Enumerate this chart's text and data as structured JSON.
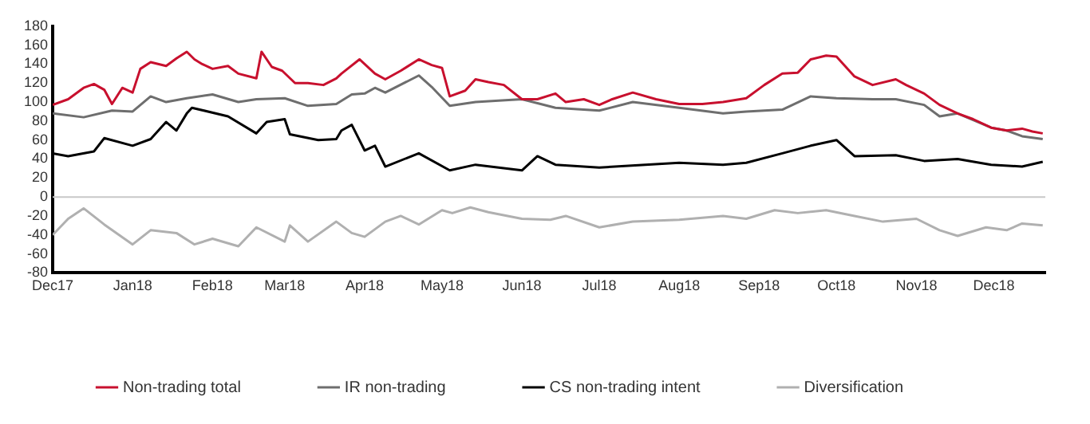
{
  "chart_data": {
    "type": "line",
    "xlim": [
      "2017-12-01",
      "2018-12-21"
    ],
    "xticks": [
      {
        "value": "2017-12-01",
        "label": "Dec17"
      },
      {
        "value": "2018-01-01",
        "label": "Jan18"
      },
      {
        "value": "2018-02-01",
        "label": "Feb18"
      },
      {
        "value": "2018-03-01",
        "label": "Mar18"
      },
      {
        "value": "2018-04-01",
        "label": "Apr18"
      },
      {
        "value": "2018-05-01",
        "label": "May18"
      },
      {
        "value": "2018-06-01",
        "label": "Jun18"
      },
      {
        "value": "2018-07-01",
        "label": "Jul18"
      },
      {
        "value": "2018-08-01",
        "label": "Aug18"
      },
      {
        "value": "2018-09-01",
        "label": "Sep18"
      },
      {
        "value": "2018-10-01",
        "label": "Oct18"
      },
      {
        "value": "2018-11-01",
        "label": "Nov18"
      },
      {
        "value": "2018-12-01",
        "label": "Dec18"
      }
    ],
    "ylim": [
      -80,
      180
    ],
    "yticks": [
      -80,
      -60,
      -40,
      -20,
      0,
      20,
      40,
      60,
      80,
      100,
      120,
      140,
      160,
      180
    ],
    "grid": false,
    "legend": "bottom",
    "marker": "none",
    "line_style": "solid",
    "ref_lines": [
      {
        "axis": "y",
        "value": 0,
        "color": "#c8c8c8"
      }
    ],
    "series": [
      {
        "name": "Non-trading total",
        "color": "#c8102e",
        "x": [
          "2017-12-01",
          "2017-12-07",
          "2017-12-13",
          "2017-12-17",
          "2017-12-21",
          "2017-12-24",
          "2017-12-28",
          "2018-01-01",
          "2018-01-04",
          "2018-01-08",
          "2018-01-14",
          "2018-01-18",
          "2018-01-22",
          "2018-01-25",
          "2018-01-28",
          "2018-02-01",
          "2018-02-07",
          "2018-02-11",
          "2018-02-18",
          "2018-02-20",
          "2018-02-24",
          "2018-02-28",
          "2018-03-05",
          "2018-03-10",
          "2018-03-16",
          "2018-03-21",
          "2018-03-23",
          "2018-03-30",
          "2018-04-05",
          "2018-04-09",
          "2018-04-15",
          "2018-04-22",
          "2018-04-27",
          "2018-05-01",
          "2018-05-04",
          "2018-05-10",
          "2018-05-14",
          "2018-05-19",
          "2018-05-25",
          "2018-06-01",
          "2018-06-07",
          "2018-06-14",
          "2018-06-18",
          "2018-06-25",
          "2018-07-01",
          "2018-07-06",
          "2018-07-14",
          "2018-07-23",
          "2018-08-01",
          "2018-08-10",
          "2018-08-18",
          "2018-08-27",
          "2018-09-03",
          "2018-09-10",
          "2018-09-16",
          "2018-09-21",
          "2018-09-27",
          "2018-10-01",
          "2018-10-08",
          "2018-10-15",
          "2018-10-24",
          "2018-10-28",
          "2018-11-04",
          "2018-11-10",
          "2018-11-17",
          "2018-11-23",
          "2018-11-30",
          "2018-12-06",
          "2018-12-12",
          "2018-12-16",
          "2018-12-20"
        ],
        "values": [
          97,
          103,
          115,
          119,
          113,
          98,
          115,
          110,
          135,
          142,
          138,
          146,
          153,
          145,
          140,
          135,
          138,
          130,
          125,
          153,
          137,
          133,
          120,
          120,
          118,
          125,
          130,
          145,
          130,
          124,
          133,
          145,
          139,
          136,
          106,
          112,
          124,
          121,
          118,
          103,
          103,
          109,
          100,
          103,
          97,
          103,
          110,
          103,
          98,
          98,
          100,
          104,
          118,
          130,
          131,
          145,
          149,
          148,
          127,
          118,
          124,
          118,
          109,
          97,
          88,
          82,
          73,
          70,
          72,
          69,
          67
        ]
      },
      {
        "name": "IR non-trading",
        "color": "#6e6e6e",
        "x": [
          "2017-12-01",
          "2017-12-13",
          "2017-12-24",
          "2018-01-01",
          "2018-01-08",
          "2018-01-14",
          "2018-01-22",
          "2018-02-01",
          "2018-02-11",
          "2018-02-18",
          "2018-03-01",
          "2018-03-10",
          "2018-03-21",
          "2018-03-27",
          "2018-04-01",
          "2018-04-05",
          "2018-04-09",
          "2018-04-22",
          "2018-04-27",
          "2018-05-04",
          "2018-05-14",
          "2018-06-01",
          "2018-06-14",
          "2018-07-01",
          "2018-07-14",
          "2018-08-01",
          "2018-08-18",
          "2018-08-27",
          "2018-09-10",
          "2018-09-21",
          "2018-10-01",
          "2018-10-15",
          "2018-10-24",
          "2018-11-04",
          "2018-11-10",
          "2018-11-17",
          "2018-11-30",
          "2018-12-06",
          "2018-12-12",
          "2018-12-20"
        ],
        "values": [
          88,
          84,
          91,
          90,
          106,
          100,
          104,
          108,
          100,
          103,
          104,
          96,
          98,
          108,
          109,
          115,
          110,
          128,
          116,
          96,
          100,
          103,
          94,
          91,
          100,
          94,
          88,
          90,
          92,
          106,
          104,
          103,
          103,
          97,
          85,
          88,
          73,
          70,
          64,
          61
        ]
      },
      {
        "name": "CS non-trading intent",
        "color": "#000000",
        "x": [
          "2017-12-01",
          "2017-12-07",
          "2017-12-17",
          "2017-12-21",
          "2018-01-01",
          "2018-01-08",
          "2018-01-14",
          "2018-01-18",
          "2018-01-22",
          "2018-01-24",
          "2018-02-07",
          "2018-02-18",
          "2018-02-22",
          "2018-03-01",
          "2018-03-03",
          "2018-03-14",
          "2018-03-21",
          "2018-03-23",
          "2018-03-27",
          "2018-04-01",
          "2018-04-05",
          "2018-04-09",
          "2018-04-22",
          "2018-05-04",
          "2018-05-14",
          "2018-06-01",
          "2018-06-07",
          "2018-06-14",
          "2018-07-01",
          "2018-08-01",
          "2018-08-18",
          "2018-08-27",
          "2018-09-10",
          "2018-09-21",
          "2018-10-01",
          "2018-10-08",
          "2018-10-24",
          "2018-11-04",
          "2018-11-17",
          "2018-11-30",
          "2018-12-12",
          "2018-12-20"
        ],
        "values": [
          46,
          43,
          48,
          62,
          54,
          61,
          79,
          70,
          88,
          94,
          85,
          67,
          79,
          82,
          66,
          60,
          61,
          70,
          76,
          49,
          54,
          32,
          46,
          28,
          34,
          28,
          43,
          34,
          31,
          36,
          34,
          36,
          46,
          54,
          60,
          43,
          44,
          38,
          40,
          34,
          32,
          37
        ]
      },
      {
        "name": "Diversification",
        "color": "#b0b0b0",
        "x": [
          "2017-12-01",
          "2017-12-07",
          "2017-12-13",
          "2017-12-21",
          "2018-01-01",
          "2018-01-08",
          "2018-01-18",
          "2018-01-25",
          "2018-02-01",
          "2018-02-11",
          "2018-02-18",
          "2018-03-01",
          "2018-03-03",
          "2018-03-10",
          "2018-03-21",
          "2018-03-27",
          "2018-04-01",
          "2018-04-09",
          "2018-04-15",
          "2018-04-22",
          "2018-05-01",
          "2018-05-05",
          "2018-05-12",
          "2018-05-19",
          "2018-06-01",
          "2018-06-12",
          "2018-06-18",
          "2018-07-01",
          "2018-07-14",
          "2018-08-01",
          "2018-08-18",
          "2018-08-27",
          "2018-09-07",
          "2018-09-16",
          "2018-09-27",
          "2018-10-08",
          "2018-10-19",
          "2018-11-01",
          "2018-11-10",
          "2018-11-17",
          "2018-11-28",
          "2018-12-06",
          "2018-12-12",
          "2018-12-20"
        ],
        "values": [
          -40,
          -23,
          -12,
          -29,
          -50,
          -35,
          -38,
          -50,
          -44,
          -52,
          -32,
          -47,
          -30,
          -47,
          -26,
          -38,
          -42,
          -26,
          -20,
          -29,
          -14,
          -17,
          -11,
          -16,
          -23,
          -24,
          -20,
          -32,
          -26,
          -24,
          -20,
          -23,
          -14,
          -17,
          -14,
          -20,
          -26,
          -23,
          -35,
          -41,
          -32,
          -35,
          -28,
          -30
        ]
      }
    ]
  }
}
